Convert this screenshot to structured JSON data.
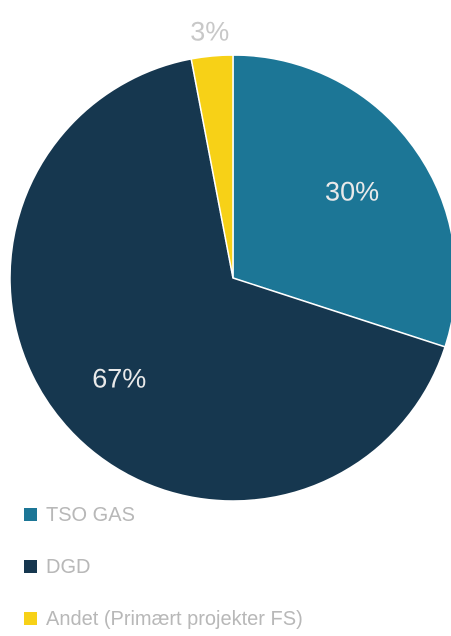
{
  "chart_data": {
    "type": "pie",
    "series": [
      {
        "name": "TSO GAS",
        "value": 30,
        "label": "30%",
        "color": "#1c7696"
      },
      {
        "name": "DGD",
        "value": 67,
        "label": "67%",
        "color": "#16374f"
      },
      {
        "name": "Andet (Primært projekter FS)",
        "value": 3,
        "label": "3%",
        "color": "#f7d117"
      }
    ],
    "label_colors": [
      "#e9e9e9",
      "#e9e9e9",
      "#c8c8c8"
    ],
    "start_angle_deg": 0,
    "direction": "clockwise",
    "legend_position": "bottom-left"
  }
}
